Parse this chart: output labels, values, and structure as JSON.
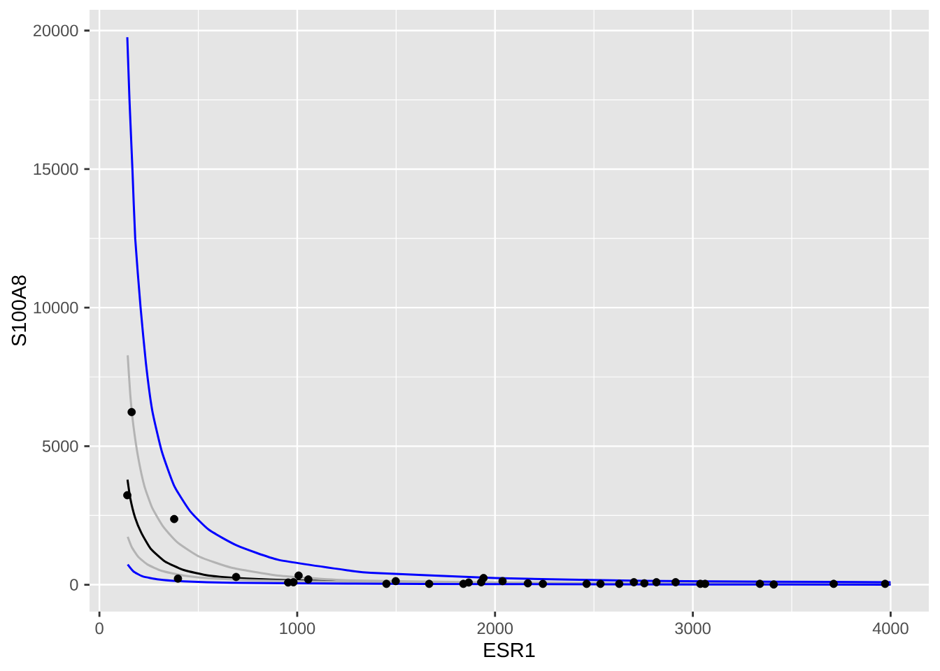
{
  "chart_data": {
    "type": "scatter",
    "xlabel": "ESR1",
    "ylabel": "S100A8",
    "xlim": [
      -50,
      4193
    ],
    "ylim": [
      -970,
      20750
    ],
    "xticks": [
      0,
      1000,
      2000,
      3000,
      4000
    ],
    "yticks": [
      0,
      5000,
      10000,
      15000,
      20000
    ],
    "grid": true,
    "line_style": "solid",
    "series": [
      {
        "color": "#000000",
        "marker": "circle",
        "x": [
          141,
          163,
          378,
          397,
          691,
          954,
          981,
          1007,
          1056,
          1451,
          1498,
          1667,
          1840,
          1867,
          1930,
          1942,
          2038,
          2166,
          2242,
          2463,
          2533,
          2628,
          2702,
          2755,
          2816,
          2913,
          3038,
          3062,
          3339,
          3409,
          3712,
          3972
        ],
        "values": [
          3230,
          6230,
          2370,
          220,
          280,
          80,
          90,
          330,
          190,
          30,
          130,
          30,
          30,
          80,
          90,
          240,
          130,
          50,
          30,
          30,
          30,
          30,
          90,
          50,
          90,
          90,
          30,
          30,
          30,
          10,
          30,
          30
        ]
      },
      {
        "type": "line",
        "color": "#000000",
        "x": [
          142,
          156,
          180,
          212,
          259,
          331,
          426,
          554,
          745,
          983,
          1254,
          2000,
          3000,
          4000
        ],
        "values": [
          3790,
          3120,
          2430,
          1870,
          1300,
          840,
          530,
          330,
          220,
          160,
          120,
          60,
          40,
          30
        ]
      },
      {
        "type": "line",
        "color": "#b3b3b3",
        "x": [
          143,
          156,
          172,
          196,
          227,
          267,
          323,
          394,
          506,
          665,
          904,
          1254,
          2000,
          3000,
          4000
        ],
        "values": [
          8280,
          6860,
          5730,
          4590,
          3570,
          2770,
          2090,
          1530,
          1010,
          620,
          330,
          160,
          80,
          50,
          30
        ]
      },
      {
        "type": "line",
        "color": "#b3b3b3",
        "x": [
          143,
          164,
          196,
          243,
          315,
          426,
          585,
          824,
          1254,
          2000,
          3000,
          4000
        ],
        "values": [
          1730,
          1350,
          1010,
          730,
          500,
          330,
          220,
          150,
          100,
          60,
          40,
          30
        ]
      },
      {
        "type": "line",
        "color": "#0000ff",
        "x": [
          141,
          152,
          167,
          181,
          208,
          235,
          267,
          315,
          378,
          458,
          554,
          697,
          904,
          1254,
          1372,
          2000,
          2750,
          3400,
          4000
        ],
        "values": [
          19760,
          17500,
          14970,
          12490,
          10010,
          8000,
          6290,
          4820,
          3570,
          2660,
          1980,
          1410,
          900,
          520,
          430,
          240,
          140,
          110,
          90
        ]
      },
      {
        "type": "line",
        "color": "#0000ff",
        "x": [
          143,
          172,
          219,
          299,
          426,
          665,
          1254,
          2000,
          3000,
          4000
        ],
        "values": [
          730,
          480,
          300,
          190,
          120,
          70,
          40,
          20,
          10,
          0
        ]
      }
    ]
  }
}
